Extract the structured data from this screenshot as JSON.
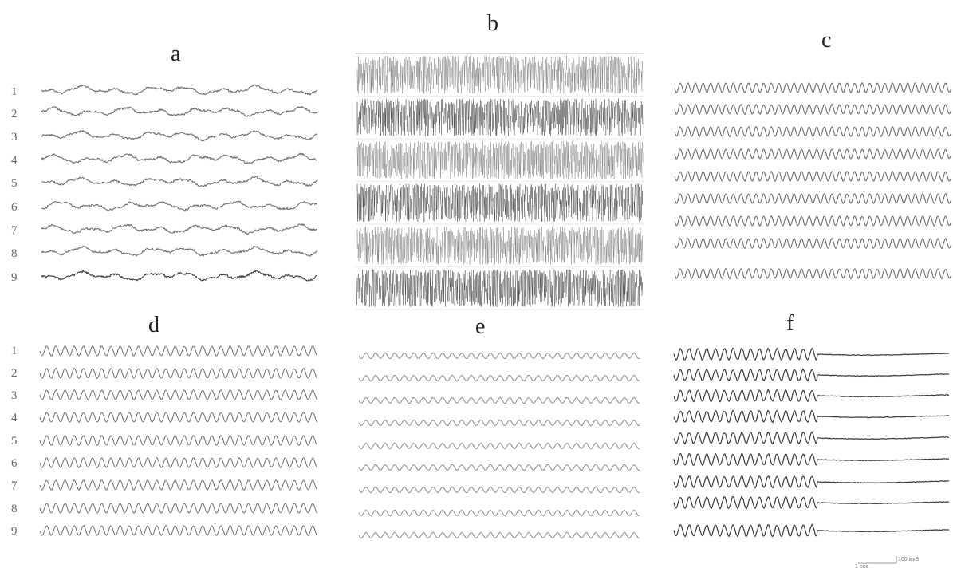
{
  "panels": {
    "a": {
      "label": "a",
      "channels": [
        "1",
        "2",
        "3",
        "4",
        "5",
        "6",
        "7",
        "8",
        "9"
      ],
      "trace": "irregular"
    },
    "b": {
      "label": "b",
      "trace": "dense-spikes"
    },
    "c": {
      "label": "c",
      "trace": "sinusoid-tight"
    },
    "d": {
      "label": "d",
      "channels": [
        "1",
        "2",
        "3",
        "4",
        "5",
        "6",
        "7",
        "8",
        "9"
      ],
      "trace": "sinusoid"
    },
    "e": {
      "label": "e",
      "trace": "sinusoid-small"
    },
    "f": {
      "label": "f",
      "trace": "oscillation-then-flat"
    }
  },
  "scale_bar": {
    "amplitude": "100 мкВ",
    "time": "1 сек"
  },
  "colors": {
    "trace": "#6e6e6e",
    "trace_dark": "#3a3a3a",
    "label": "#222222"
  }
}
